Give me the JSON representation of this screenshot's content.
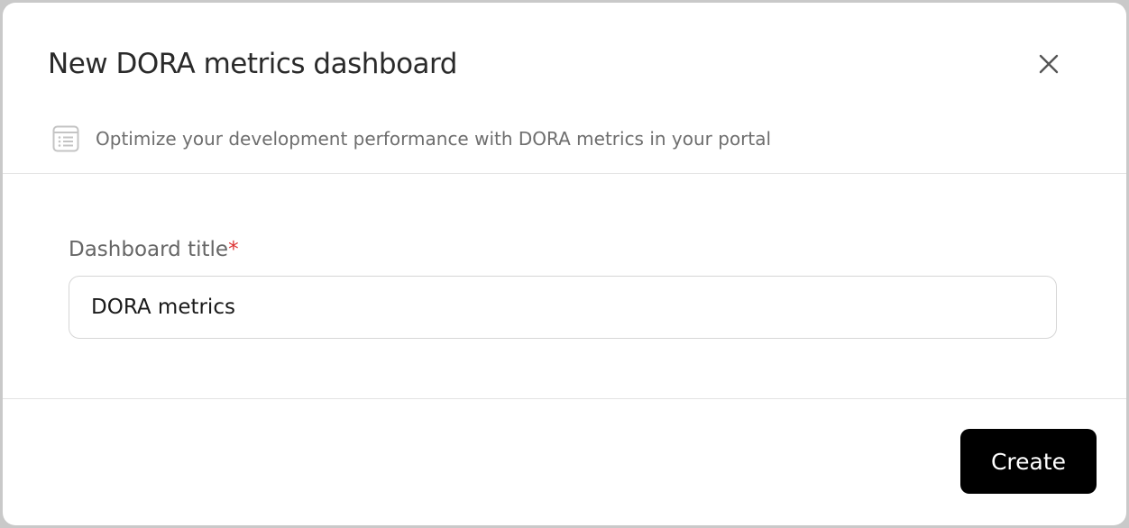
{
  "dialog": {
    "title": "New DORA metrics dashboard",
    "subtitle": "Optimize your development performance with DORA metrics in your portal",
    "subtitle_icon": "list-document-icon",
    "close_icon": "close-icon"
  },
  "form": {
    "title_label": "Dashboard title",
    "required_marker": "*",
    "title_value": "DORA metrics"
  },
  "footer": {
    "create_label": "Create"
  }
}
